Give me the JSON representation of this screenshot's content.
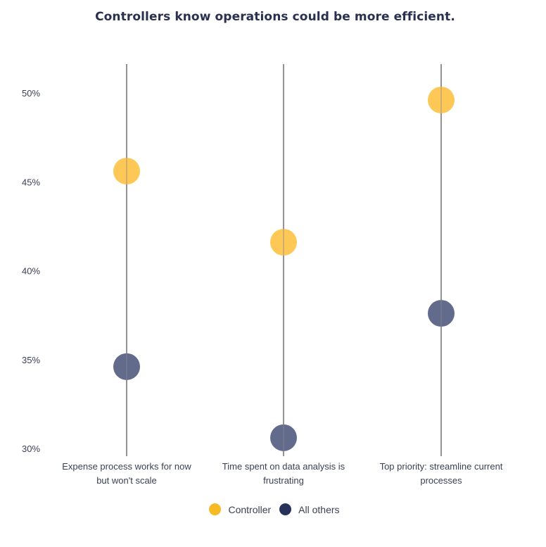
{
  "chart_data": {
    "type": "dot-plot",
    "title": "Controllers know operations could be more efficient.",
    "xlabel": "",
    "ylabel": "",
    "ylim": [
      30,
      50
    ],
    "y_ticks": [
      50,
      45,
      40,
      35,
      30
    ],
    "y_tick_labels": [
      "50%",
      "45%",
      "40%",
      "35%",
      "30%"
    ],
    "grid": false,
    "legend_position": "bottom-center",
    "categories": [
      [
        "Expense process works for now",
        "but won't scale"
      ],
      [
        "Time spent on data analysis is",
        "frustrating"
      ],
      [
        "Top priority: streamline current",
        "processes"
      ]
    ],
    "series": [
      {
        "name": "Controller",
        "color": "#F7B924",
        "point_color": "#FDC855",
        "values": [
          45.6,
          41.6,
          49.6
        ]
      },
      {
        "name": "All others",
        "color": "#27325A",
        "point_color": "#636B8C",
        "values": [
          34.6,
          30.6,
          37.6
        ]
      }
    ]
  }
}
